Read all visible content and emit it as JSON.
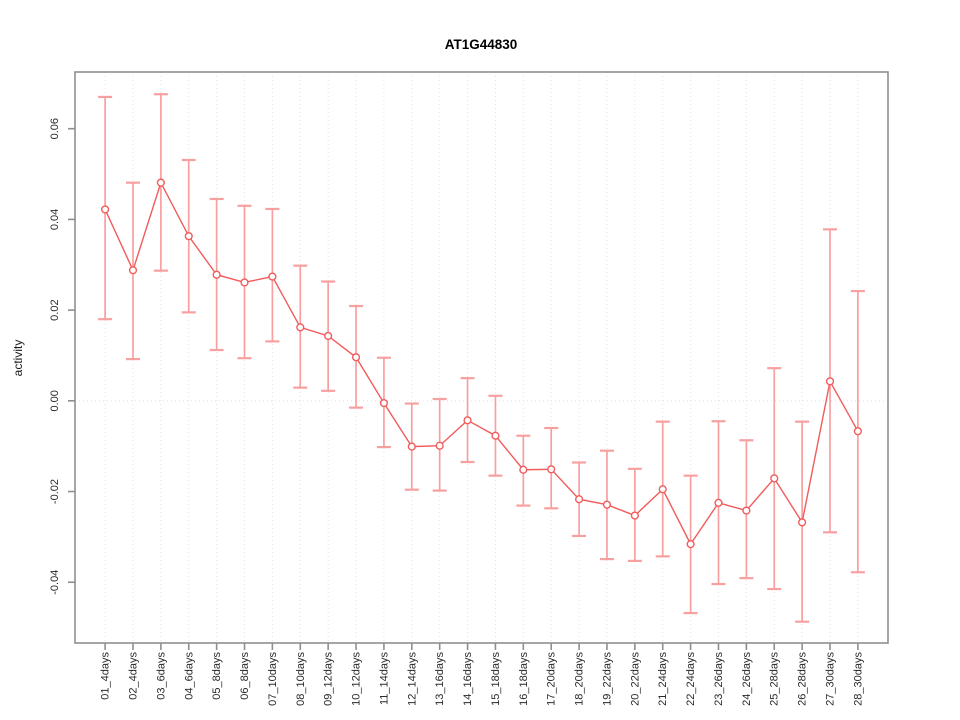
{
  "page": {
    "background": "#ffffff"
  },
  "chart_data": {
    "type": "line",
    "title": "AT1G44830",
    "xlabel": "",
    "ylabel": "activity",
    "categories": [
      "01_4days",
      "02_4days",
      "03_6days",
      "04_6days",
      "05_8days",
      "06_8days",
      "07_10days",
      "08_10days",
      "09_12days",
      "10_12days",
      "11_14days",
      "12_14days",
      "13_16days",
      "14_16days",
      "15_18days",
      "16_18days",
      "17_20days",
      "18_20days",
      "19_22days",
      "20_22days",
      "21_24days",
      "22_24days",
      "23_26days",
      "24_26days",
      "25_28days",
      "26_28days",
      "27_30days",
      "28_30days"
    ],
    "series": [
      {
        "name": "activity",
        "values": [
          0.0422,
          0.0288,
          0.0481,
          0.0363,
          0.0278,
          0.0261,
          0.0274,
          0.0162,
          0.0143,
          0.0096,
          -0.0005,
          -0.0101,
          -0.0099,
          -0.0043,
          -0.0077,
          -0.0152,
          -0.0151,
          -0.0217,
          -0.0229,
          -0.0253,
          -0.0195,
          -0.0316,
          -0.0225,
          -0.0242,
          -0.0171,
          -0.0268,
          0.0043,
          -0.0067
        ],
        "error_low": [
          0.018,
          0.0092,
          0.0287,
          0.0195,
          0.0112,
          0.0094,
          0.0131,
          0.0029,
          0.0022,
          -0.0015,
          -0.0102,
          -0.0196,
          -0.0198,
          -0.0135,
          -0.0165,
          -0.0231,
          -0.0237,
          -0.0298,
          -0.0349,
          -0.0353,
          -0.0343,
          -0.0468,
          -0.0404,
          -0.0391,
          -0.0415,
          -0.0487,
          -0.029,
          -0.0378
        ],
        "error_high": [
          0.067,
          0.0481,
          0.0676,
          0.0531,
          0.0445,
          0.043,
          0.0423,
          0.0298,
          0.0263,
          0.0209,
          0.0095,
          -0.0006,
          0.0004,
          0.005,
          0.0011,
          -0.0077,
          -0.006,
          -0.0136,
          -0.011,
          -0.015,
          -0.0046,
          -0.0165,
          -0.0045,
          -0.0087,
          0.0072,
          -0.0046,
          0.0378,
          0.0242
        ]
      }
    ],
    "xlim": [
      -0.08,
      29.08
    ],
    "ylim": [
      -0.0534,
      0.0725
    ],
    "ytick_labels": [
      "-0.04",
      "-0.02",
      "0.00",
      "0.02",
      "0.04",
      "0.06"
    ],
    "legend": "none",
    "grid": {
      "vertical_dotted_per_category": true,
      "horizontal_dotted_at_zero": true
    },
    "marker": "open-circle",
    "colors": {
      "series_line": "#f15b5b",
      "marker_stroke": "#f15b5b",
      "marker_fill": "#ffffff",
      "error_bar": "#f8a0a0",
      "axis_box": "#8f8f8f",
      "grid_line": "#e3e3e3",
      "tick_text": "#2a2a2a",
      "title_text": "#000000"
    }
  }
}
